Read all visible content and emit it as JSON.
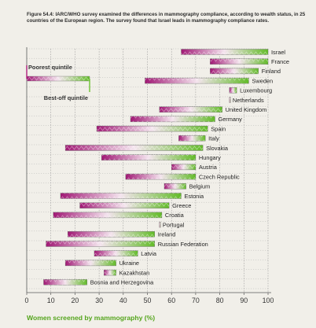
{
  "caption": "Figure 54.4: IARC/WHO survey examined the differences in mammography compliance, according to wealth status, in 25 countries of the European region. The survey found that Israel leads in mammography compliance rates.",
  "chart_data": {
    "type": "bar",
    "subtype": "dumbbell-range",
    "title": "",
    "xlabel": "Women screened by mammography (%)",
    "ylabel": "",
    "xlim": [
      0,
      100
    ],
    "xticks": [
      0,
      10,
      20,
      30,
      40,
      50,
      60,
      70,
      80,
      90,
      100
    ],
    "grid": true,
    "legend": {
      "placement": "top-left",
      "entries": [
        {
          "label": "Poorest quintile",
          "color": "#b0207e"
        },
        {
          "label": "Best-off quintile",
          "color": "#6cc230"
        }
      ]
    },
    "colors": {
      "poorest": "#b0207e",
      "best_off": "#6cc230",
      "axis_title": "#55a51d"
    },
    "countries": [
      {
        "name": "Israel",
        "poorest": 64,
        "best_off": 100
      },
      {
        "name": "France",
        "poorest": 76,
        "best_off": 100
      },
      {
        "name": "Finland",
        "poorest": 76,
        "best_off": 96
      },
      {
        "name": "Sweden",
        "poorest": 49,
        "best_off": 92
      },
      {
        "name": "Luxembourg",
        "poorest": 84,
        "best_off": 87
      },
      {
        "name": "Netherlands",
        "poorest": 84,
        "best_off": 84
      },
      {
        "name": "United Kingdom",
        "poorest": 55,
        "best_off": 81
      },
      {
        "name": "Germany",
        "poorest": 43,
        "best_off": 78
      },
      {
        "name": "Spain",
        "poorest": 29,
        "best_off": 75
      },
      {
        "name": "Italy",
        "poorest": 63,
        "best_off": 74
      },
      {
        "name": "Slovakia",
        "poorest": 16,
        "best_off": 73
      },
      {
        "name": "Hungary",
        "poorest": 31,
        "best_off": 70
      },
      {
        "name": "Austria",
        "poorest": 60,
        "best_off": 70
      },
      {
        "name": "Czech Republic",
        "poorest": 41,
        "best_off": 70
      },
      {
        "name": "Belgium",
        "poorest": 57,
        "best_off": 66
      },
      {
        "name": "Estonia",
        "poorest": 14,
        "best_off": 64
      },
      {
        "name": "Greece",
        "poorest": 22,
        "best_off": 59
      },
      {
        "name": "Croatia",
        "poorest": 11,
        "best_off": 56
      },
      {
        "name": "Portugal",
        "poorest": 55,
        "best_off": 55
      },
      {
        "name": "Ireland",
        "poorest": 17,
        "best_off": 53
      },
      {
        "name": "Russian Federation",
        "poorest": 8,
        "best_off": 53
      },
      {
        "name": "Latvia",
        "poorest": 28,
        "best_off": 46
      },
      {
        "name": "Ukraine",
        "poorest": 16,
        "best_off": 37
      },
      {
        "name": "Kazakhstan",
        "poorest": 32,
        "best_off": 37
      },
      {
        "name": "Bosnia and Herzegovina",
        "poorest": 7,
        "best_off": 25
      }
    ]
  }
}
